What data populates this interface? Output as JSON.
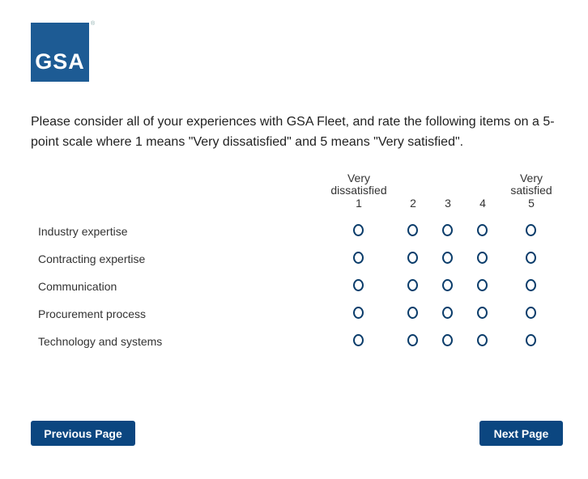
{
  "logo": {
    "text": "GSA",
    "reg": "®"
  },
  "question": "Please consider all of your experiences with GSA Fleet, and rate the following items on a 5-point scale where 1 means \"Very dissatisfied\" and 5 means \"Very satisfied\".",
  "scale": [
    {
      "label": "Very\ndissatisfied",
      "value": "1"
    },
    {
      "label": "",
      "value": "2"
    },
    {
      "label": "",
      "value": "3"
    },
    {
      "label": "",
      "value": "4"
    },
    {
      "label": "Very\nsatisfied",
      "value": "5"
    }
  ],
  "items": [
    "Industry expertise",
    "Contracting expertise",
    "Communication",
    "Procurement process",
    "Technology and systems"
  ],
  "buttons": {
    "previous": "Previous Page",
    "next": "Next Page"
  },
  "colors": {
    "brand": "#1d5b94",
    "button": "#0b4680",
    "radio": "#0b3d6b"
  }
}
